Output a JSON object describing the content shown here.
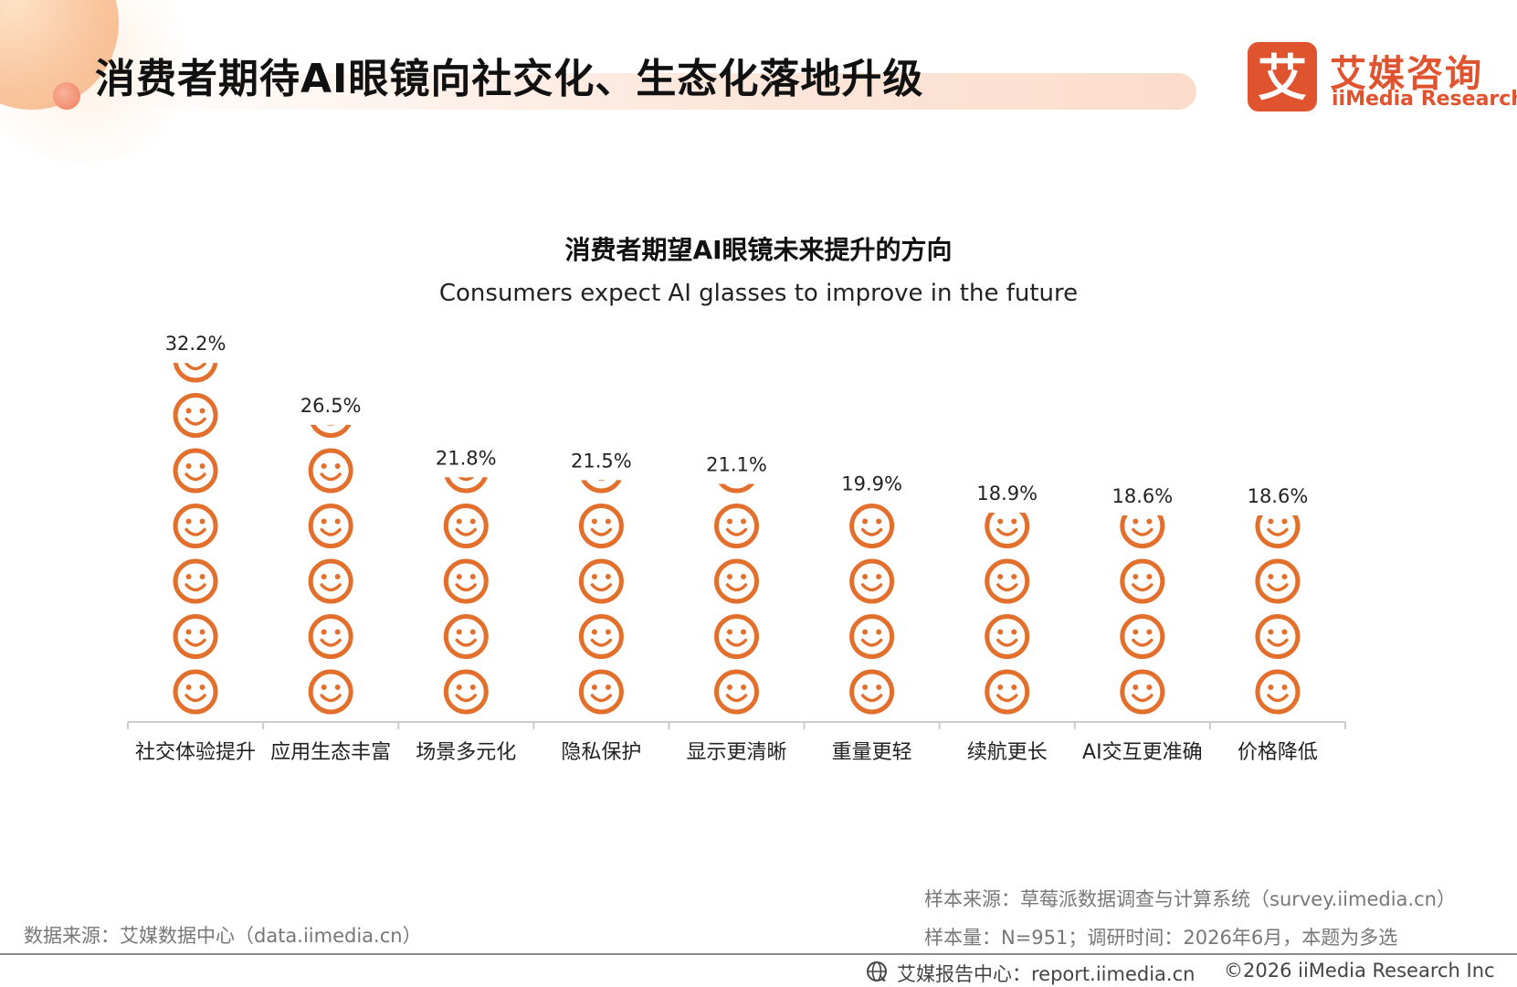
{
  "header": {
    "title": "消费者期待AI眼镜向社交化、生态化落地升级"
  },
  "logo": {
    "mark_char": "艾",
    "name_cn": "艾媒咨询",
    "name_en": "iiMedia Research"
  },
  "chart_data": {
    "type": "bar",
    "title": "消费者期望AI眼镜未来提升的方向",
    "subtitle": "Consumers expect AI glasses to improve in the future",
    "categories": [
      "社交体验提升",
      "应用生态丰富",
      "场景多元化",
      "隐私保护",
      "显示更清晰",
      "重量更轻",
      "续航更长",
      "AI交互更准确",
      "价格降低"
    ],
    "values": [
      32.2,
      26.5,
      21.8,
      21.5,
      21.1,
      19.9,
      18.9,
      18.6,
      18.6
    ],
    "value_labels": [
      "32.2%",
      "26.5%",
      "21.8%",
      "21.5%",
      "21.1%",
      "19.9%",
      "18.9%",
      "18.6%",
      "18.6%"
    ],
    "unit": "%",
    "mark": "smiley-icon",
    "color": "#e36f2c",
    "grid": false,
    "legend": "none"
  },
  "footer": {
    "data_source": "数据来源：艾媒数据中心（data.iimedia.cn）",
    "sample_source": "样本来源：草莓派数据调查与计算系统（survey.iimedia.cn）",
    "sample_info": "样本量：N=951；调研时间：2026年6月，本题为多选",
    "report_center": "艾媒报告中心：report.iimedia.cn",
    "copyright": "©2026  iiMedia Research  Inc"
  }
}
